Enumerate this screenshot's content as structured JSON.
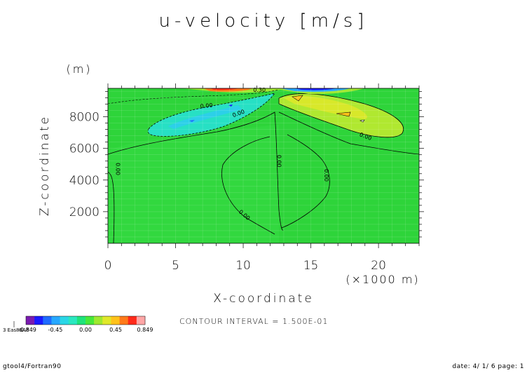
{
  "chart_data": {
    "type": "heatmap",
    "title": "u-velocity [m/s]",
    "xlabel": "X-coordinate",
    "ylabel": "Z-coordinate",
    "y_unit": "(m)",
    "x_unit": "(×1000 m)",
    "xlim": [
      0,
      23
    ],
    "ylim": [
      0,
      9800
    ],
    "x_ticks": [
      0,
      5,
      10,
      15,
      20
    ],
    "y_ticks": [
      2000,
      4000,
      6000,
      8000
    ],
    "contour_interval_text": "CONTOUR INTERVAL = 1.500E-01",
    "contour_labels": [
      {
        "text": "0.00",
        "x": 7.3,
        "y": 8580,
        "angle": -6
      },
      {
        "text": "0.00",
        "x": 9.7,
        "y": 8100,
        "angle": -20
      },
      {
        "text": "0.00",
        "x": 19.0,
        "y": 6650,
        "angle": 20
      },
      {
        "text": "0.00",
        "x": 0.6,
        "y": 4700,
        "angle": 90
      },
      {
        "text": "0.00",
        "x": 12.5,
        "y": 5200,
        "angle": 90
      },
      {
        "text": "0.00",
        "x": 16.0,
        "y": 4300,
        "angle": 90
      },
      {
        "text": "0.00",
        "x": 10.0,
        "y": 1700,
        "angle": 40
      },
      {
        "text": "0.30",
        "x": 11.2,
        "y": 9580,
        "angle": 0
      }
    ],
    "colorbar": {
      "colors": [
        "#7a1bb0",
        "#1a1aff",
        "#1f6bff",
        "#27a8ff",
        "#2ad6e6",
        "#2ae8c0",
        "#1fe37a",
        "#47e83a",
        "#9fe830",
        "#e0e82a",
        "#ffc21a",
        "#ff7a1a",
        "#ff2a1a",
        "#ffa6a6"
      ],
      "tick_labels": [
        "-0.849",
        "-0.45",
        "0.00",
        "0.45",
        "0.849"
      ],
      "left_label": "3 Eas8BA8"
    }
  },
  "footer": {
    "left": "gtool4/Fortran90",
    "right": "date: 4/ 1/ 6 page: 1"
  }
}
